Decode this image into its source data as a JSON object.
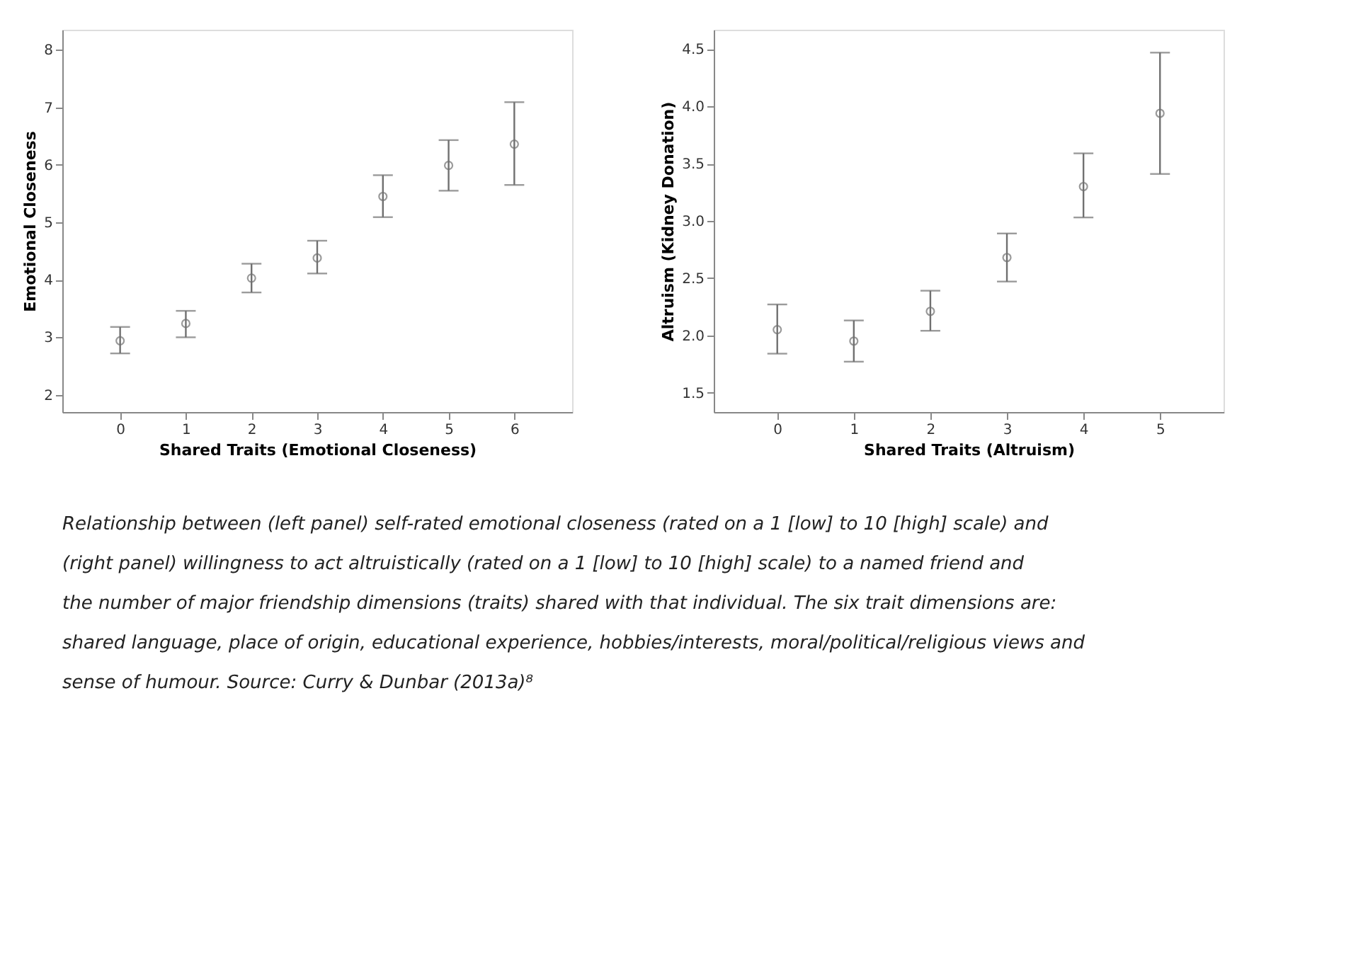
{
  "chart_data": [
    {
      "type": "scatter",
      "xlabel": "Shared Traits (Emotional Closeness)",
      "ylabel": "Emotional Closeness",
      "x": [
        0,
        1,
        2,
        3,
        4,
        5,
        6
      ],
      "series": [
        {
          "color": "#707070",
          "values": [
            2.94,
            3.24,
            4.03,
            4.38,
            5.45,
            5.99,
            6.36
          ],
          "errors": [
            [
              2.72,
              3.18
            ],
            [
              3.0,
              3.46
            ],
            [
              3.78,
              4.28
            ],
            [
              4.11,
              4.68
            ],
            [
              5.09,
              5.82
            ],
            [
              5.55,
              6.43
            ],
            [
              5.65,
              7.09
            ]
          ]
        }
      ],
      "xlim": [
        -0.88,
        6.88
      ],
      "xticks": [
        0,
        1,
        2,
        3,
        4,
        5,
        6
      ],
      "ylim": [
        1.7,
        8.35
      ],
      "yticks": [
        2,
        3,
        4,
        5,
        6,
        7,
        8
      ],
      "grid": false,
      "marker": "circle",
      "annotations": [
        "Relationship between (left panel) self-rated emotional closeness (rated on a 1 [low] to 10 [high] scale) and (right panel) willingness to act altruistically (rated on a 1 [low] to 10 [high] scale) to a named friend and the number of major friendship dimensions (traits) shared with that individual. The six trait dimensions are: shared language, place of origin, educational experience, hobbies/interests, moral/political/religious views and sense of humour.",
        "Source: Curry & Dunbar (2013a)⁸"
      ]
    },
    {
      "type": "scatter",
      "xlabel": "Shared Traits (Altruism)",
      "ylabel": "Altruism (Kidney Donation)",
      "x": [
        0,
        1,
        2,
        3,
        4,
        5
      ],
      "series": [
        {
          "color": "#707070",
          "values": [
            2.05,
            1.95,
            2.21,
            2.68,
            3.3,
            3.94
          ],
          "errors": [
            [
              1.84,
              2.27
            ],
            [
              1.77,
              2.13
            ],
            [
              2.04,
              2.39
            ],
            [
              2.47,
              2.89
            ],
            [
              3.03,
              3.59
            ],
            [
              3.41,
              4.47
            ]
          ]
        }
      ],
      "xlim": [
        -0.83,
        5.83
      ],
      "xticks": [
        0,
        1,
        2,
        3,
        4,
        5
      ],
      "ylim": [
        1.33,
        4.67
      ],
      "yticks": [
        {
          "value": 1.5,
          "label": "1.5"
        },
        {
          "value": 2,
          "label": "2.0"
        },
        {
          "value": 2.5,
          "label": "2.5"
        },
        {
          "value": 3,
          "label": "3.0"
        },
        {
          "value": 3.5,
          "label": "3.5"
        },
        {
          "value": 4,
          "label": "4.0"
        },
        {
          "value": 4.5,
          "label": "4.5"
        }
      ],
      "grid": false,
      "marker": "circle"
    }
  ]
}
